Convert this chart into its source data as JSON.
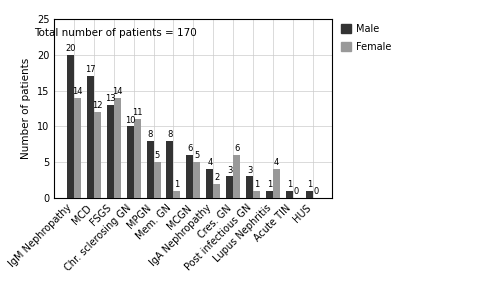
{
  "categories": [
    "IgM Nephropathy",
    "MCD",
    "FSGS",
    "Chr. sclerosing GN",
    "MPGN",
    "Mem. GN",
    "MCGN",
    "IgA Nephropathy",
    "Cres. GN",
    "Post infectious GN",
    "Lupus Nephritis",
    "Acute TIN",
    "HUS"
  ],
  "male_values": [
    20,
    17,
    13,
    10,
    8,
    8,
    6,
    4,
    3,
    3,
    1,
    1,
    1
  ],
  "female_values": [
    14,
    12,
    14,
    11,
    5,
    1,
    5,
    2,
    6,
    1,
    4,
    0,
    0
  ],
  "male_color": "#333333",
  "female_color": "#999999",
  "ylabel": "Number of patients",
  "ylim": [
    0,
    25
  ],
  "yticks": [
    0,
    5,
    10,
    15,
    20,
    25
  ],
  "annotation": "Total number of patients = 170",
  "legend_male": "Male",
  "legend_female": "Female",
  "bar_width": 0.35,
  "annotation_fontsize": 7.5,
  "axis_label_fontsize": 7.5,
  "tick_fontsize": 7,
  "bar_label_fontsize": 6,
  "legend_fontsize": 7
}
